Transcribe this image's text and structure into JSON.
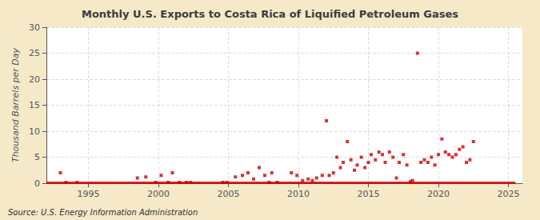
{
  "chart_data": {
    "type": "scatter",
    "title": "Monthly U.S. Exports to Costa Rica of Liquified Petroleum Gases",
    "y_label": "Thousand Barrels per Day",
    "annotation": "Source: U.S. Energy Information Administration",
    "background_color": "#f5e9c8",
    "plot_bg_color": "#ffffff",
    "xlim": [
      1992.0,
      2026.0
    ],
    "ylim": [
      0,
      30
    ],
    "xticks": [
      1995,
      2000,
      2005,
      2010,
      2015,
      2020,
      2025
    ],
    "yticks": [
      0,
      5,
      10,
      15,
      20,
      25,
      30
    ],
    "grid": true,
    "series": [
      {
        "type": "scatter",
        "marker": "square",
        "color": "#cc0000",
        "x": [
          1993.0,
          1993.4,
          1994.2,
          1998.5,
          1999.1,
          1999.8,
          2000.2,
          2000.7,
          2001.0,
          2001.5,
          2002.0,
          2002.3,
          2004.6,
          2004.9,
          2005.5,
          2006.0,
          2006.4,
          2006.8,
          2007.2,
          2007.6,
          2007.9,
          2008.1,
          2008.5,
          2009.5,
          2009.9,
          2010.3,
          2010.7,
          2011.0,
          2011.3,
          2011.7,
          2012.0,
          2012.2,
          2012.5,
          2012.75,
          2013.0,
          2013.2,
          2013.5,
          2013.75,
          2014.0,
          2014.2,
          2014.5,
          2014.75,
          2015.0,
          2015.2,
          2015.5,
          2015.75,
          2016.0,
          2016.2,
          2016.5,
          2016.75,
          2017.0,
          2017.2,
          2017.5,
          2017.75,
          2018.0,
          2018.15,
          2018.5,
          2018.75,
          2019.0,
          2019.25,
          2019.5,
          2019.75,
          2020.0,
          2020.25,
          2020.5,
          2020.75,
          2021.0,
          2021.25,
          2021.5,
          2021.75,
          2022.0,
          2022.25,
          2022.5
        ],
        "values": [
          2.0,
          0.15,
          0.15,
          1.0,
          1.2,
          0.15,
          1.5,
          0.15,
          2.0,
          0.15,
          0.15,
          0.15,
          0.15,
          0.15,
          1.2,
          1.5,
          2.0,
          0.8,
          3.0,
          1.5,
          0.15,
          2.0,
          0.15,
          2.0,
          1.5,
          0.5,
          0.8,
          0.5,
          1.0,
          1.5,
          12.0,
          1.5,
          2.0,
          5.0,
          3.0,
          4.0,
          8.0,
          4.5,
          2.5,
          3.5,
          5.0,
          3.0,
          4.0,
          5.5,
          4.5,
          6.0,
          5.5,
          4.0,
          6.0,
          5.0,
          1.0,
          4.0,
          5.5,
          3.5,
          0.3,
          0.5,
          25.0,
          4.0,
          4.5,
          4.0,
          5.0,
          3.5,
          5.5,
          8.5,
          6.0,
          5.5,
          5.0,
          5.5,
          6.5,
          7.0,
          4.0,
          4.5,
          8.0
        ]
      },
      {
        "type": "line",
        "line_style": "solid",
        "color": "#cc0000",
        "x": [
          1992.0,
          2025.5
        ],
        "values": [
          0.08,
          0.08
        ]
      }
    ]
  }
}
